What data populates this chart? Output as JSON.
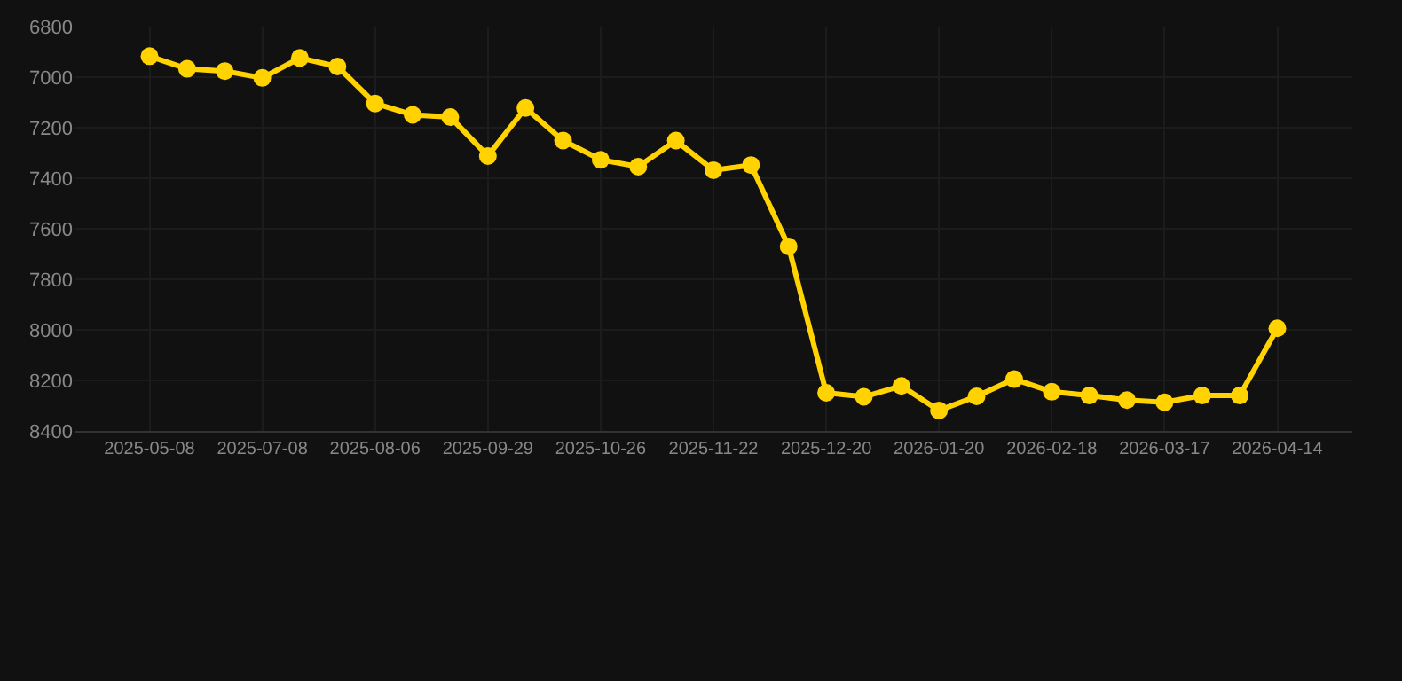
{
  "chart_data": {
    "type": "line",
    "categories": [
      "2025-05-08",
      null,
      null,
      "2025-07-08",
      null,
      null,
      "2025-08-06",
      null,
      null,
      "2025-09-29",
      null,
      null,
      "2025-10-26",
      null,
      null,
      "2025-11-22",
      null,
      null,
      "2025-12-20",
      null,
      null,
      "2026-01-20",
      null,
      null,
      "2026-02-18",
      null,
      null,
      "2026-03-17",
      null,
      null,
      "2026-04-14"
    ],
    "series": [
      {
        "color": "#ffd200",
        "values": [
          6917,
          6967,
          6976,
          7003,
          6924,
          6958,
          7104,
          7149,
          7158,
          7312,
          7122,
          7251,
          7327,
          7354,
          7251,
          7368,
          7348,
          7670,
          8249,
          8265,
          8222,
          8319,
          8263,
          8195,
          8245,
          8260,
          8278,
          8287,
          8260,
          8260,
          7994
        ]
      }
    ],
    "ylim": [
      8400,
      6800
    ],
    "yticks": [
      6800,
      7000,
      7200,
      7400,
      7600,
      7800,
      8000,
      8200,
      8400
    ],
    "grid": true,
    "marker": "circle",
    "line_style": "solid"
  }
}
